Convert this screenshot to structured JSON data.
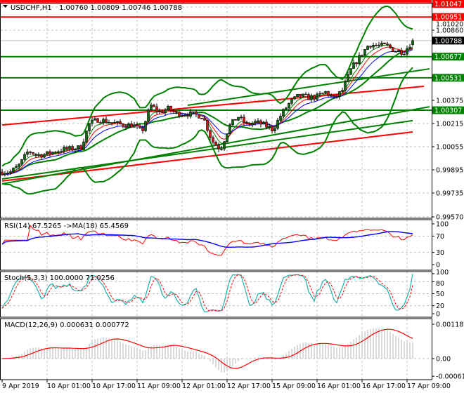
{
  "header": {
    "symbol": "USDCHF,H1",
    "ohlc": "1.00760 1.00809 1.00746 1.00788"
  },
  "colors": {
    "bull_candle": "#0a6b0a",
    "bear_candle": "#e01010",
    "bollinger": "#008000",
    "level_red": "#ff0000",
    "level_green": "#008000",
    "rsi": "#ff0000",
    "rsi_ma": "#0000ff",
    "stoch_main": "#20b2aa",
    "stoch_signal": "#ff0000",
    "macd_hist": "#b4b4b4",
    "macd_signal": "#ff0000",
    "grid": "#c0c0c0"
  },
  "chart_data": [
    {
      "type": "candlestick",
      "title": "USDCHF,H1",
      "ylim": [
        0.9955,
        1.0106
      ],
      "y_ticks": [
        "1.01020",
        "1.00860",
        "1.00375",
        "1.00215",
        "1.00055",
        "0.99895",
        "0.99735",
        "0.99570"
      ],
      "x_ticks": [
        "9 Apr 2019",
        "10 Apr 01:00",
        "10 Apr 17:00",
        "11 Apr 09:00",
        "12 Apr 01:00",
        "12 Apr 17:00",
        "15 Apr 09:00",
        "16 Apr 01:00",
        "16 Apr 17:00",
        "17 Apr 09:00"
      ],
      "approx_closes": [
        0.99881,
        0.99881,
        0.99929,
        1.00026,
        0.99997,
        1.00002,
        1.00021,
        1.00036,
        1.00041,
        1.0005,
        1.00215,
        1.00244,
        1.0023,
        1.00215,
        1.00205,
        1.00205,
        1.00157,
        1.00341,
        1.00293,
        1.00317,
        1.00283,
        1.00283,
        1.00278,
        1.00264,
        1.00099,
        1.00036,
        1.00196,
        1.00264,
        1.00205,
        1.00225,
        1.00205,
        1.00172,
        1.00283,
        1.00365,
        1.00409,
        1.00395,
        1.00399,
        1.00433,
        1.00385,
        1.00448,
        1.00598,
        1.00681,
        1.00763,
        1.00753,
        1.00753,
        1.00719,
        1.0071,
        1.00788
      ],
      "current_price": "1.00788",
      "horizontal_levels": [
        {
          "price": 1.01047,
          "label": "1.01047",
          "color": "#ff0000"
        },
        {
          "price": 1.00951,
          "label": "1.00951",
          "color": "#ff0000"
        },
        {
          "price": 1.00677,
          "label": "1.00677",
          "color": "#008000"
        },
        {
          "price": 1.00531,
          "label": "1.00531",
          "color": "#008000"
        },
        {
          "price": 1.00307,
          "label": "1.00307",
          "color": "#008000"
        }
      ],
      "trend_lines": [
        {
          "color": "#ff0000",
          "from": {
            "bar": 0,
            "price": 1.00205
          },
          "to": {
            "bar": 150,
            "price": 1.00472
          }
        },
        {
          "color": "#ff0000",
          "from": {
            "bar": 0,
            "price": 0.99818
          },
          "to": {
            "bar": 146,
            "price": 1.00157
          }
        },
        {
          "color": "#008000",
          "from": {
            "bar": 0,
            "price": 0.99798
          },
          "to": {
            "bar": 152,
            "price": 1.00331
          }
        },
        {
          "color": "#008000",
          "from": {
            "bar": 0,
            "price": 0.99832
          },
          "to": {
            "bar": 146,
            "price": 1.00235
          }
        },
        {
          "color": "#008000",
          "from": {
            "bar": 66,
            "price": 1.00341
          },
          "to": {
            "bar": 152,
            "price": 1.00593
          }
        }
      ],
      "indicators": [
        "Bollinger Bands(20,2)",
        "Moving Averages"
      ]
    },
    {
      "type": "line",
      "title": "RSI(14) 67.5265  ->MA(18) 65.4569",
      "ylim": [
        0,
        100
      ],
      "y_ticks": [
        "100",
        "70",
        "30",
        "0"
      ]
    },
    {
      "type": "line",
      "title": "Stoch(5,3,3) 100.0000 71.0256",
      "ylim": [
        0,
        100
      ],
      "y_ticks": [
        "100",
        "80",
        "50",
        "20",
        "0"
      ]
    },
    {
      "type": "bar",
      "title": "MACD(12,26,9) 0.000631 0.000772",
      "ylim": [
        -0.00061,
        0.001189
      ],
      "y_ticks": [
        "0.001189",
        "0.00",
        "-0.00061"
      ]
    }
  ]
}
